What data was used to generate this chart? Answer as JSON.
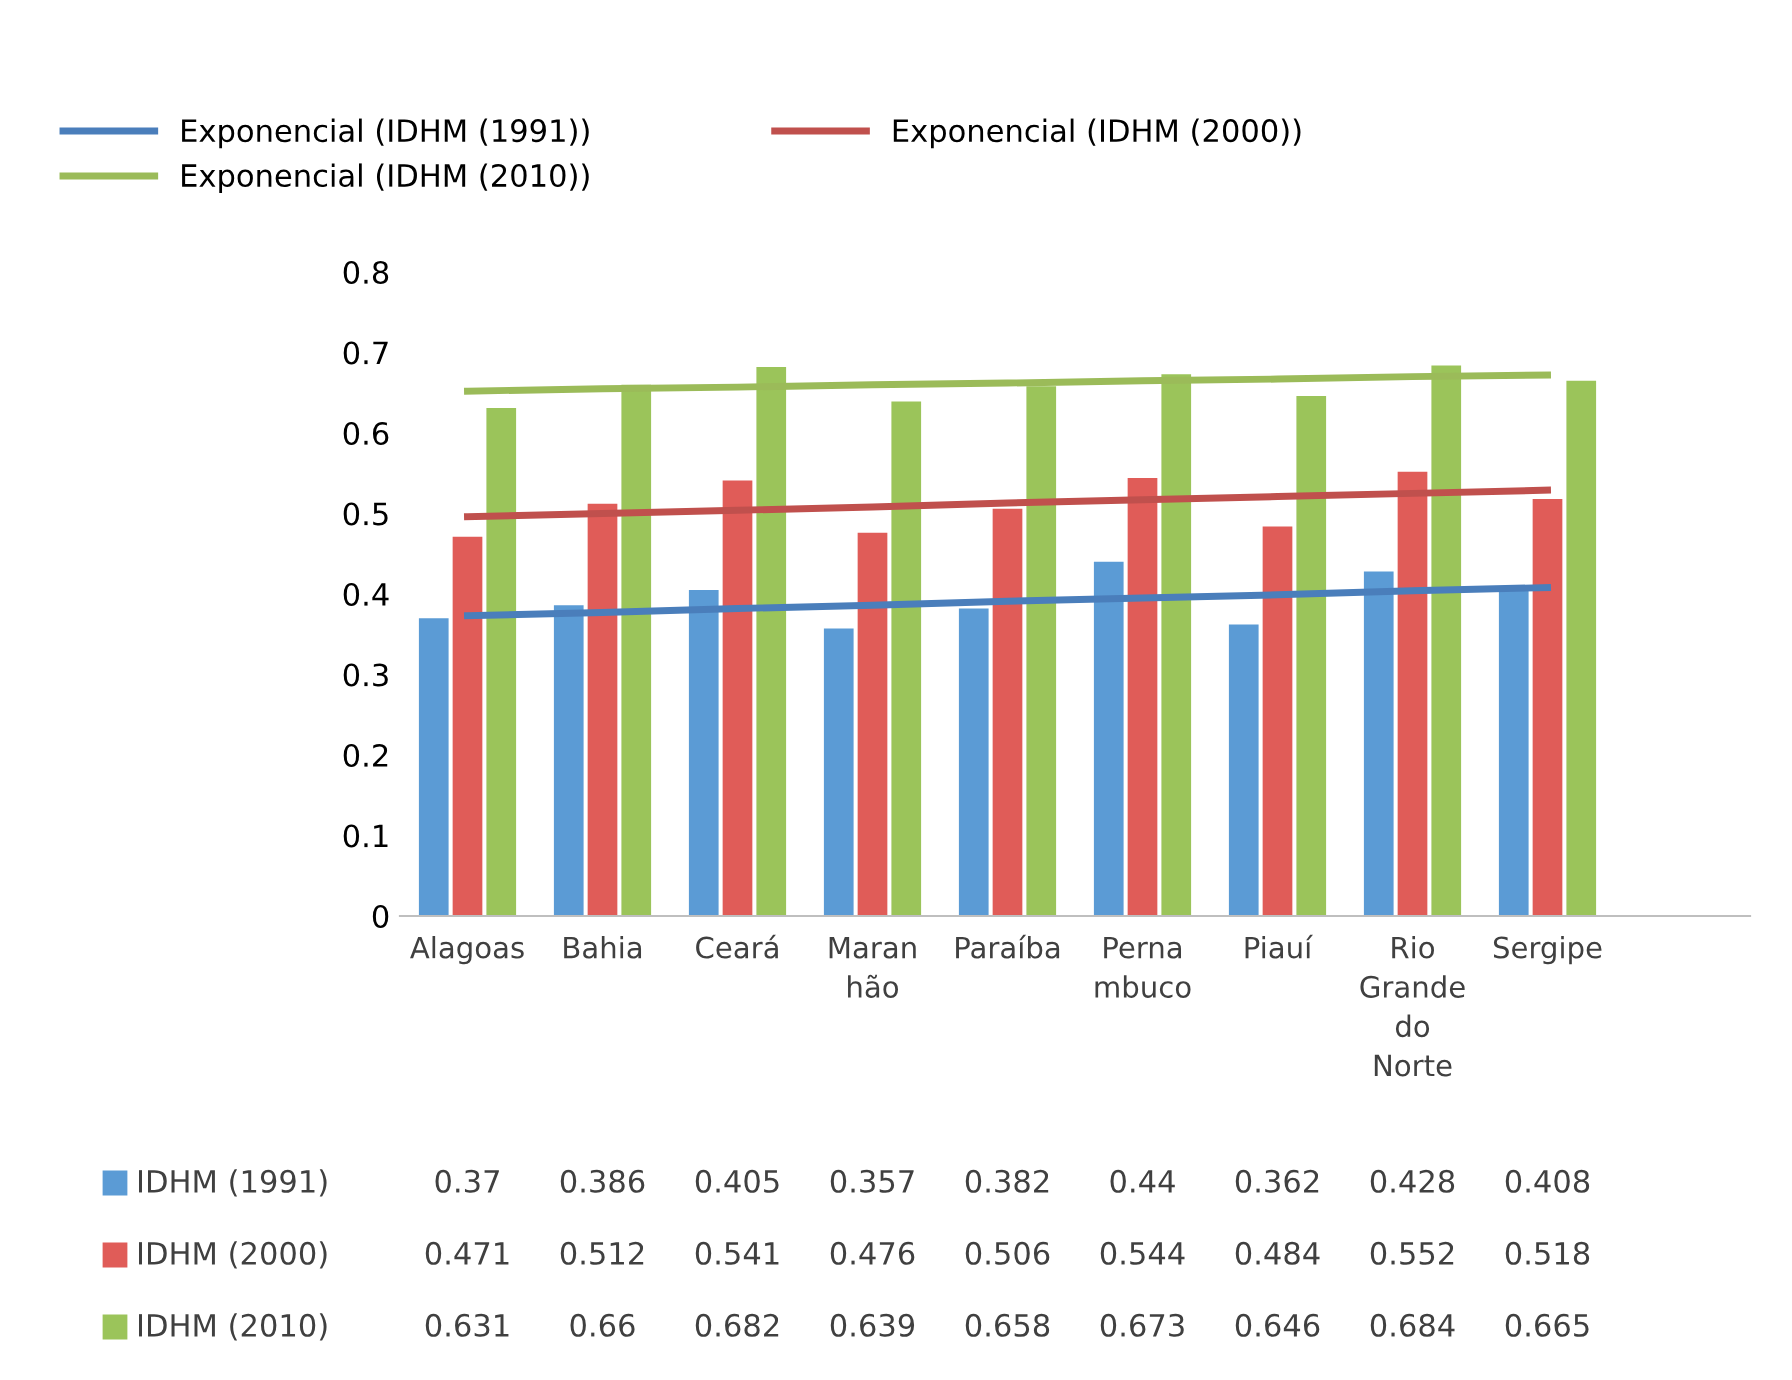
{
  "chart_data": {
    "type": "bar",
    "categories": [
      "Alagoas",
      "Bahia",
      "Ceará",
      "Maranhão",
      "Paraíba",
      "Pernambuco",
      "Piauí",
      "Rio Grande do Norte",
      "Sergipe"
    ],
    "series": [
      {
        "name": "IDHM (1991)",
        "color": "#5b9bd5",
        "values": [
          0.37,
          0.386,
          0.405,
          0.357,
          0.382,
          0.44,
          0.362,
          0.428,
          0.408
        ],
        "value_labels": [
          "0.37",
          "0.386",
          "0.405",
          "0.357",
          "0.382",
          "0.44",
          "0.362",
          "0.428",
          "0.408"
        ]
      },
      {
        "name": "IDHM (2000)",
        "color": "#e05c58",
        "values": [
          0.471,
          0.512,
          0.541,
          0.476,
          0.506,
          0.544,
          0.484,
          0.552,
          0.518
        ],
        "value_labels": [
          "0.471",
          "0.512",
          "0.541",
          "0.476",
          "0.506",
          "0.544",
          "0.484",
          "0.552",
          "0.518"
        ]
      },
      {
        "name": "IDHM (2010)",
        "color": "#9bc45a",
        "values": [
          0.631,
          0.66,
          0.682,
          0.639,
          0.658,
          0.673,
          0.646,
          0.684,
          0.665
        ],
        "value_labels": [
          "0.631",
          "0.66",
          "0.682",
          "0.639",
          "0.658",
          "0.673",
          "0.646",
          "0.684",
          "0.665"
        ]
      },
      {
        "type": "line",
        "name": "Exponencial (IDHM (1991))",
        "color": "#4a7ebb",
        "values": [
          0.373,
          0.377,
          0.382,
          0.386,
          0.391,
          0.395,
          0.399,
          0.404,
          0.408
        ]
      },
      {
        "type": "line",
        "name": "Exponencial (IDHM (2000))",
        "color": "#c0504d",
        "values": [
          0.496,
          0.5,
          0.504,
          0.508,
          0.513,
          0.517,
          0.521,
          0.525,
          0.529
        ]
      },
      {
        "type": "line",
        "name": "Exponencial (IDHM (2010))",
        "color": "#9bbb59",
        "values": [
          0.652,
          0.655,
          0.657,
          0.66,
          0.662,
          0.665,
          0.667,
          0.67,
          0.672
        ]
      }
    ],
    "ylim": [
      0,
      0.8
    ],
    "yticks": [
      0,
      0.1,
      0.2,
      0.3,
      0.4,
      0.5,
      0.6,
      0.7,
      0.8
    ],
    "grid": false,
    "legend": "bottom left",
    "marker": "none",
    "line_style": "solid"
  }
}
